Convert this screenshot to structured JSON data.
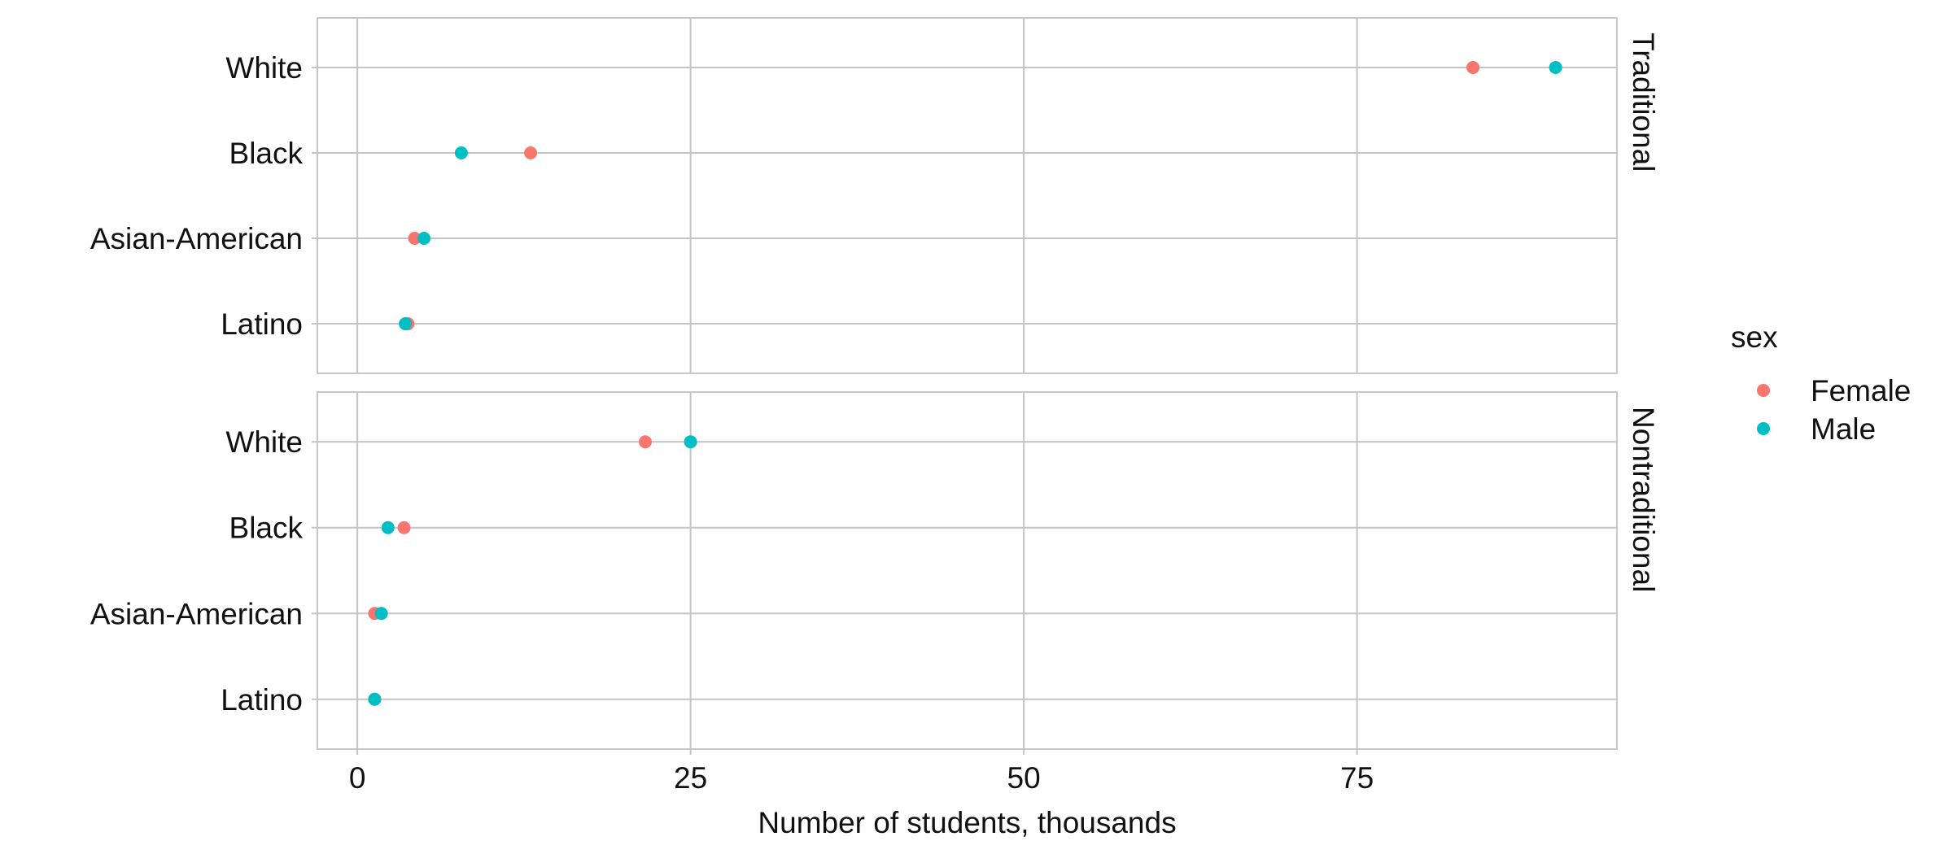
{
  "chart_data": {
    "type": "scatter",
    "xlabel": "Number of students, thousands",
    "ylabel": "",
    "xlim": [
      -3,
      94.5
    ],
    "x_ticks": [
      0,
      25,
      50,
      75
    ],
    "x_tick_labels": [
      "0",
      "25",
      "50",
      "75"
    ],
    "grid": true,
    "categories": [
      "White",
      "Black",
      "Asian-American",
      "Latino"
    ],
    "legend": {
      "title": "sex",
      "placement": "right",
      "entries": [
        {
          "name": "Female",
          "color": "#F8766D"
        },
        {
          "name": "Male",
          "color": "#00BFC4"
        }
      ]
    },
    "facets": [
      {
        "label": "Traditional",
        "series": [
          {
            "name": "Female",
            "color": "#F8766D",
            "values": [
              83.7,
              13.0,
              4.3,
              3.8
            ]
          },
          {
            "name": "Male",
            "color": "#00BFC4",
            "values": [
              89.9,
              7.8,
              5.0,
              3.6
            ]
          }
        ]
      },
      {
        "label": "Nontraditional",
        "series": [
          {
            "name": "Female",
            "color": "#F8766D",
            "values": [
              21.6,
              3.5,
              1.3,
              1.3
            ]
          },
          {
            "name": "Male",
            "color": "#00BFC4",
            "values": [
              25.0,
              2.3,
              1.8,
              1.3
            ]
          }
        ]
      }
    ]
  }
}
